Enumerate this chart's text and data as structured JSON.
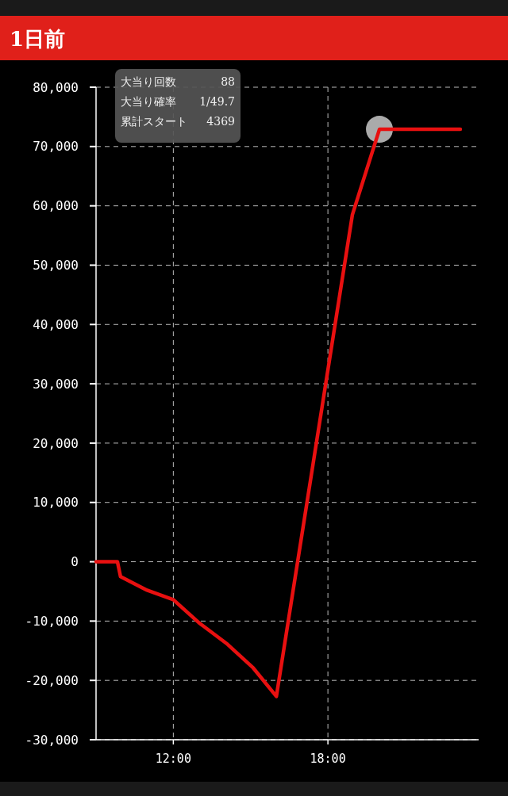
{
  "chart_data": {
    "type": "line",
    "title": "1日前",
    "annotations": [
      "大当り回数",
      "88",
      "大当り確率",
      "1/49.7",
      "累計スタート",
      "4369"
    ],
    "xlim": [
      9,
      23.85
    ],
    "xticks": [
      {
        "value": 12,
        "label": "12:00"
      },
      {
        "value": 18,
        "label": "18:00"
      }
    ],
    "ylim": [
      -30000,
      80000
    ],
    "yticks": [
      {
        "value": -30000,
        "label": "-30,000"
      },
      {
        "value": -20000,
        "label": "-20,000"
      },
      {
        "value": -10000,
        "label": "-10,000"
      },
      0,
      {
        "value": 10000,
        "label": "10,000"
      },
      {
        "value": 20000,
        "label": "20,000"
      },
      {
        "value": 30000,
        "label": "30,000"
      },
      {
        "value": 40000,
        "label": "40,000"
      },
      {
        "value": 50000,
        "label": "50,000"
      },
      {
        "value": 60000,
        "label": "60,000"
      },
      {
        "value": 70000,
        "label": "70,000"
      },
      {
        "value": 80000,
        "label": "80,000"
      }
    ],
    "grid": true,
    "line_style": "solid",
    "series": [
      {
        "color": "#e81010",
        "marker": "none",
        "x": [
          9,
          9.83,
          9.95,
          10.98,
          12,
          13,
          14.1,
          15.1,
          16,
          18.95,
          20,
          23.14
        ],
        "values": [
          0,
          0,
          -2500,
          -4800,
          -6400,
          -10300,
          -13900,
          -17900,
          -22700,
          58500,
          72900,
          72900
        ]
      },
      {
        "type": "scatter",
        "marker": "circle",
        "color": "#c8c8c8",
        "x": [
          20
        ],
        "values": [
          72900
        ]
      }
    ]
  }
}
